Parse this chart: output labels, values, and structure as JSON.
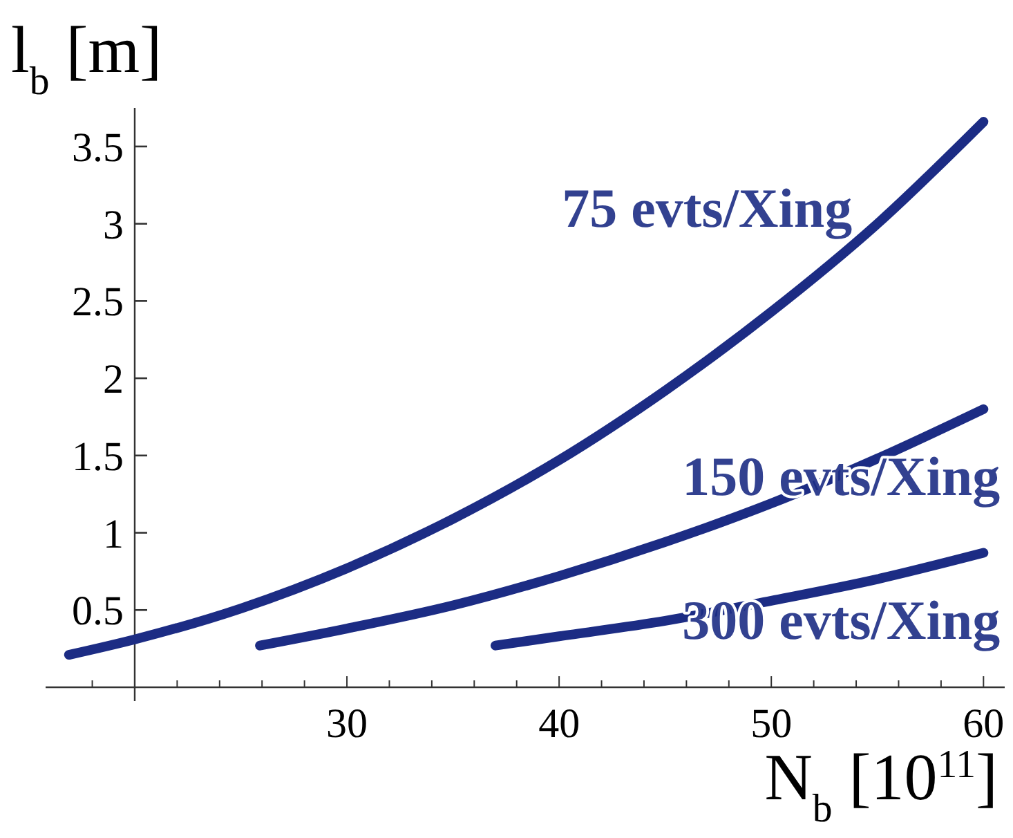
{
  "chart_data": {
    "type": "line",
    "xlabel": "N$_{b}$ [10$^{11}$]",
    "ylabel": "l$_{b}$ [m]",
    "xlim": [
      15.8,
      61
    ],
    "ylim": [
      0,
      3.75
    ],
    "xticks": [
      {
        "value": 18,
        "label": null
      },
      {
        "value": 20,
        "label": null
      },
      {
        "value": 22,
        "label": null
      },
      {
        "value": 24,
        "label": null
      },
      {
        "value": 26,
        "label": null
      },
      {
        "value": 28,
        "label": null
      },
      30,
      {
        "value": 32,
        "label": null
      },
      {
        "value": 34,
        "label": null
      },
      {
        "value": 36,
        "label": null
      },
      {
        "value": 38,
        "label": null
      },
      40,
      {
        "value": 42,
        "label": null
      },
      {
        "value": 44,
        "label": null
      },
      {
        "value": 46,
        "label": null
      },
      {
        "value": 48,
        "label": null
      },
      50,
      {
        "value": 52,
        "label": null
      },
      {
        "value": 54,
        "label": null
      },
      {
        "value": 56,
        "label": null
      },
      {
        "value": 58,
        "label": null
      },
      60
    ],
    "yticks": [
      0.5,
      1,
      1.5,
      2,
      2.5,
      3,
      3.5
    ],
    "series": [
      {
        "name": "75 evts/Xing",
        "color": "#1c2c84",
        "x": [
          16.9,
          20,
          25,
          30,
          35,
          40,
          45,
          50,
          55,
          60
        ],
        "values": [
          0.21,
          0.31,
          0.51,
          0.77,
          1.09,
          1.47,
          1.92,
          2.43,
          3.0,
          3.66
        ]
      },
      {
        "name": "150 evts/Xing",
        "color": "#1c2c84",
        "x": [
          25.9,
          30,
          35,
          40,
          45,
          50,
          55,
          60
        ],
        "values": [
          0.27,
          0.38,
          0.53,
          0.72,
          0.94,
          1.19,
          1.48,
          1.8
        ]
      },
      {
        "name": "300 evts/Xing",
        "color": "#1c2c84",
        "x": [
          37,
          40,
          45,
          50,
          55,
          60
        ],
        "values": [
          0.27,
          0.33,
          0.43,
          0.56,
          0.7,
          0.87
        ]
      }
    ],
    "grid": false,
    "legend": false,
    "marker": "none",
    "line_style": "solid"
  }
}
